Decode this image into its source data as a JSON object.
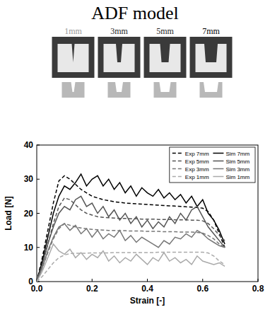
{
  "figure": {
    "title": "ADF model",
    "panels": [
      "1mm",
      "3mm",
      "5mm",
      "7mm"
    ]
  },
  "chart_data": {
    "type": "line",
    "xlabel": "Strain [-]",
    "ylabel": "Load [N]",
    "xlim": [
      0,
      0.8
    ],
    "ylim": [
      0,
      40
    ],
    "xticks": [
      {
        "value": 0,
        "label": "0.0"
      },
      0.2,
      0.4,
      0.6,
      0.8
    ],
    "yticks": [
      0,
      10,
      20,
      30,
      40
    ],
    "legend": "upper right",
    "x": [
      0,
      0.02,
      0.04,
      0.06,
      0.08,
      0.1,
      0.12,
      0.14,
      0.16,
      0.18,
      0.2,
      0.22,
      0.24,
      0.26,
      0.28,
      0.3,
      0.32,
      0.34,
      0.36,
      0.38,
      0.4,
      0.42,
      0.44,
      0.46,
      0.48,
      0.5,
      0.52,
      0.54,
      0.56,
      0.58,
      0.6,
      0.62,
      0.64,
      0.66,
      0.68
    ],
    "series": [
      {
        "name": "Exp 7mm",
        "color": "#000000",
        "line_style": "dashed",
        "values": [
          0,
          7,
          15,
          23,
          29.5,
          31,
          30,
          28.5,
          27,
          26,
          25,
          24.5,
          24,
          23.7,
          23.4,
          23.2,
          23,
          22.9,
          22.8,
          22.7,
          22.6,
          22.5,
          22.4,
          22.3,
          22.2,
          22.1,
          22,
          21.9,
          21.8,
          21.7,
          21.5,
          20.5,
          18,
          14,
          10
        ]
      },
      {
        "name": "Sim 7mm",
        "color": "#000000",
        "line_style": "solid",
        "values": [
          0,
          6,
          13,
          20,
          25,
          28,
          27,
          29,
          31.5,
          28,
          30,
          31,
          28,
          30,
          27,
          29,
          26,
          28,
          25,
          27.5,
          26,
          25,
          27,
          24.5,
          26,
          24,
          25.5,
          23,
          25,
          22,
          24,
          20,
          18,
          15,
          11
        ]
      },
      {
        "name": "Exp 5mm",
        "color": "#555555",
        "line_style": "dashed",
        "values": [
          0,
          5,
          11,
          17,
          22,
          24.5,
          24,
          22.5,
          21,
          20,
          19.5,
          19,
          18.8,
          18.7,
          18.6,
          18.5,
          18.5,
          18.4,
          18.4,
          18.3,
          18.3,
          18.3,
          18.2,
          18.2,
          18.2,
          18.1,
          18.1,
          18.1,
          18,
          18,
          17.8,
          17,
          15.5,
          13.5,
          12
        ]
      },
      {
        "name": "Sim 5mm",
        "color": "#555555",
        "line_style": "solid",
        "values": [
          0,
          5,
          11,
          16,
          20,
          22,
          21,
          24,
          25,
          22,
          23,
          20,
          22,
          19,
          21,
          18,
          20,
          17,
          19,
          16,
          18,
          15.5,
          17.5,
          16,
          19,
          17,
          20,
          18,
          21,
          22,
          19,
          16,
          14,
          12,
          10
        ]
      },
      {
        "name": "Exp 3mm",
        "color": "#777777",
        "line_style": "dashed",
        "values": [
          0,
          4,
          8.5,
          12.5,
          15.5,
          17,
          16.5,
          16,
          15.7,
          15.5,
          15.3,
          15.2,
          15.1,
          15,
          15,
          14.9,
          14.9,
          14.8,
          14.8,
          14.8,
          14.7,
          14.7,
          14.7,
          14.6,
          14.6,
          14.6,
          14.5,
          14.5,
          14.5,
          14.4,
          14.2,
          13.5,
          12.5,
          11,
          10
        ]
      },
      {
        "name": "Sim 3mm",
        "color": "#777777",
        "line_style": "solid",
        "values": [
          0,
          4,
          9,
          13,
          16,
          17,
          15,
          16.5,
          14,
          15.5,
          13,
          15,
          12.5,
          14,
          13,
          15,
          12,
          13.5,
          11.5,
          13,
          12,
          11,
          10,
          12,
          11,
          13,
          12.5,
          14,
          13,
          15,
          14,
          12.5,
          11.5,
          10.5,
          10
        ]
      },
      {
        "name": "Exp 1mm",
        "color": "#aaaaaa",
        "line_style": "dashed",
        "values": [
          0,
          1.5,
          3.5,
          5.5,
          7,
          7.8,
          8.2,
          8.3,
          8.3,
          8.3,
          8.4,
          8.4,
          8.4,
          8.4,
          8.5,
          8.5,
          8.5,
          8.5,
          8.5,
          8.5,
          8.5,
          8.5,
          8.6,
          8.6,
          8.6,
          8.6,
          8.6,
          8.6,
          8.6,
          8.6,
          8.6,
          8.4,
          7.5,
          6,
          5
        ]
      },
      {
        "name": "Sim 1mm",
        "color": "#aaaaaa",
        "line_style": "solid",
        "values": [
          0,
          3,
          7,
          11,
          9,
          8,
          9.5,
          7,
          8.5,
          6.5,
          8,
          7,
          9,
          6,
          7.5,
          5.5,
          7,
          6,
          8,
          6.5,
          5,
          7,
          6,
          8.5,
          6,
          7,
          5.5,
          6.5,
          5,
          7.5,
          6,
          5.5,
          5,
          5.5,
          4.5
        ]
      }
    ]
  }
}
